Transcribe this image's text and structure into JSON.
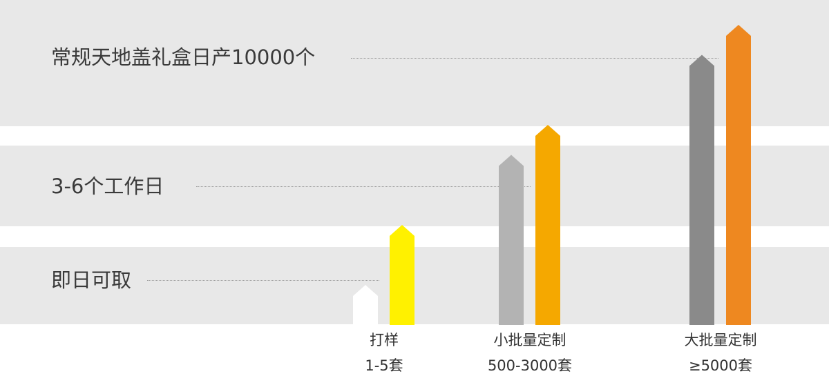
{
  "chart_data": {
    "type": "bar",
    "tiers": [
      {
        "label": "即日可取",
        "level": 1
      },
      {
        "label": "3-6个工作日",
        "level": 2
      },
      {
        "label": "常规天地盖礼盒日产10000个",
        "level": 3
      }
    ],
    "groups": [
      {
        "name": "打样",
        "quantity": "1-5套",
        "bars": [
          {
            "level": 0.4,
            "color": "#ffffff"
          },
          {
            "level": 1,
            "color": "#fff100"
          }
        ]
      },
      {
        "name": "小批量定制",
        "quantity": "500-3000套",
        "bars": [
          {
            "level": 1.7,
            "color": "#b3b3b3"
          },
          {
            "level": 2,
            "color": "#f5a800"
          }
        ]
      },
      {
        "name": "大批量定制",
        "quantity": "≥5000套",
        "bars": [
          {
            "level": 2.7,
            "color": "#8a8a8a"
          },
          {
            "level": 3,
            "color": "#ee8820"
          }
        ]
      }
    ],
    "band_color": "#e8e8e8"
  }
}
